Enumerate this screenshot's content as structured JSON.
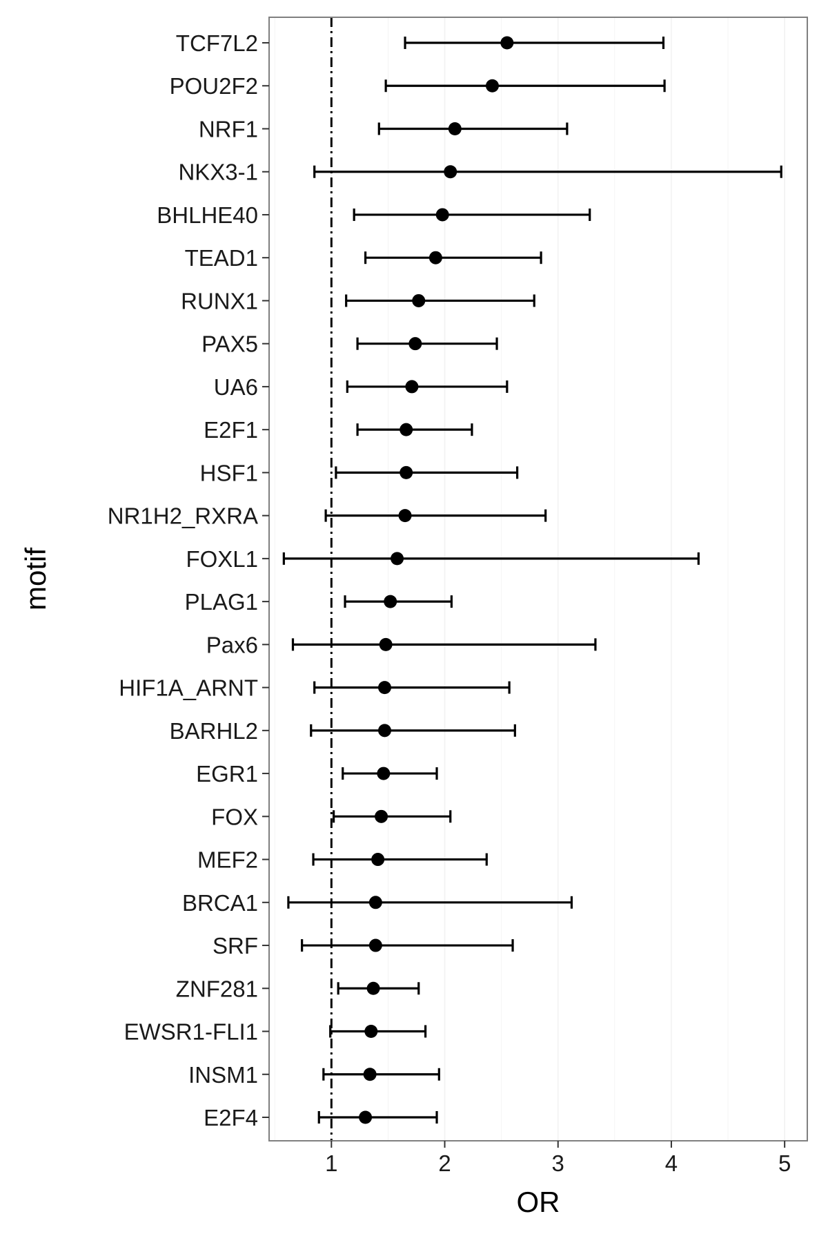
{
  "chart_data": {
    "type": "scatter",
    "subtype": "forest-plot",
    "title": "",
    "xlabel": "OR",
    "ylabel": "motif",
    "xlim": [
      0.45,
      5.2
    ],
    "x_ticks": [
      1,
      2,
      3,
      4,
      5
    ],
    "reference_line": {
      "x": 1,
      "style": "dotdash"
    },
    "grid": "vertical-light",
    "colors": {
      "point": "#000000",
      "errorbar": "#000000",
      "frame": "#7f7f7f",
      "grid": "#f2f2f2",
      "background": "#ffffff"
    },
    "motifs": [
      {
        "motif": "TCF7L2",
        "or": 2.55,
        "lower": 1.65,
        "upper": 3.93
      },
      {
        "motif": "POU2F2",
        "or": 2.42,
        "lower": 1.48,
        "upper": 3.94
      },
      {
        "motif": "NRF1",
        "or": 2.09,
        "lower": 1.42,
        "upper": 3.08
      },
      {
        "motif": "NKX3-1",
        "or": 2.05,
        "lower": 0.85,
        "upper": 4.97
      },
      {
        "motif": "BHLHE40",
        "or": 1.98,
        "lower": 1.2,
        "upper": 3.28
      },
      {
        "motif": "TEAD1",
        "or": 1.92,
        "lower": 1.3,
        "upper": 2.85
      },
      {
        "motif": "RUNX1",
        "or": 1.77,
        "lower": 1.13,
        "upper": 2.79
      },
      {
        "motif": "PAX5",
        "or": 1.74,
        "lower": 1.23,
        "upper": 2.46
      },
      {
        "motif": "UA6",
        "or": 1.71,
        "lower": 1.14,
        "upper": 2.55
      },
      {
        "motif": "E2F1",
        "or": 1.66,
        "lower": 1.23,
        "upper": 2.24
      },
      {
        "motif": "HSF1",
        "or": 1.66,
        "lower": 1.04,
        "upper": 2.64
      },
      {
        "motif": "NR1H2_RXRA",
        "or": 1.65,
        "lower": 0.95,
        "upper": 2.89
      },
      {
        "motif": "FOXL1",
        "or": 1.58,
        "lower": 0.58,
        "upper": 4.24
      },
      {
        "motif": "PLAG1",
        "or": 1.52,
        "lower": 1.12,
        "upper": 2.06
      },
      {
        "motif": "Pax6",
        "or": 1.48,
        "lower": 0.66,
        "upper": 3.33
      },
      {
        "motif": "HIF1A_ARNT",
        "or": 1.47,
        "lower": 0.85,
        "upper": 2.57
      },
      {
        "motif": "BARHL2",
        "or": 1.47,
        "lower": 0.82,
        "upper": 2.62
      },
      {
        "motif": "EGR1",
        "or": 1.46,
        "lower": 1.1,
        "upper": 1.93
      },
      {
        "motif": "FOX",
        "or": 1.44,
        "lower": 1.02,
        "upper": 2.05
      },
      {
        "motif": "MEF2",
        "or": 1.41,
        "lower": 0.84,
        "upper": 2.37
      },
      {
        "motif": "BRCA1",
        "or": 1.39,
        "lower": 0.62,
        "upper": 3.12
      },
      {
        "motif": "SRF",
        "or": 1.39,
        "lower": 0.74,
        "upper": 2.6
      },
      {
        "motif": "ZNF281",
        "or": 1.37,
        "lower": 1.06,
        "upper": 1.77
      },
      {
        "motif": "EWSR1-FLI1",
        "or": 1.35,
        "lower": 0.99,
        "upper": 1.83
      },
      {
        "motif": "INSM1",
        "or": 1.34,
        "lower": 0.93,
        "upper": 1.95
      },
      {
        "motif": "E2F4",
        "or": 1.3,
        "lower": 0.89,
        "upper": 1.93
      }
    ]
  }
}
